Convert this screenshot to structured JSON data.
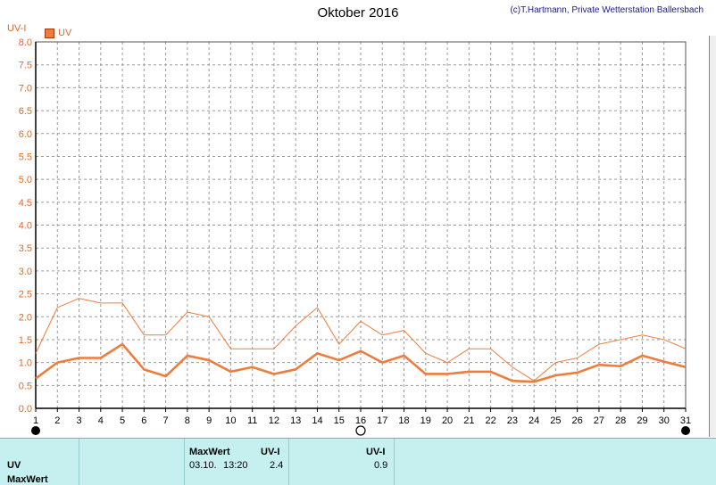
{
  "header": {
    "title": "Oktober 2016",
    "copyright": "(c)T.Hartmann, Private Wetterstation Ballersbach",
    "ylabel": "UV-I",
    "legend_label": "UV"
  },
  "colors": {
    "axis_text": "#e06a2a",
    "series": "#ee7c3c",
    "grid": "#9a9a9a",
    "panel_bg": "#c6f0f0"
  },
  "chart_data": {
    "type": "line",
    "title": "Oktober 2016",
    "ylabel": "UV-I",
    "xlabel": "",
    "ylim": [
      0,
      8
    ],
    "yticks": [
      "0.0",
      "0.5",
      "1.0",
      "1.5",
      "2.0",
      "2.5",
      "3.0",
      "3.5",
      "4.0",
      "4.5",
      "5.0",
      "5.5",
      "6.0",
      "6.5",
      "7.0",
      "7.5",
      "8.0"
    ],
    "x": [
      1,
      2,
      3,
      4,
      5,
      6,
      7,
      8,
      9,
      10,
      11,
      12,
      13,
      14,
      15,
      16,
      17,
      18,
      19,
      20,
      21,
      22,
      23,
      24,
      25,
      26,
      27,
      28,
      29,
      30,
      31
    ],
    "grid": true,
    "legend_position": "top-left",
    "series": [
      {
        "name": "UV",
        "style": "thin",
        "values": [
          1.2,
          2.2,
          2.4,
          2.3,
          2.3,
          1.6,
          1.6,
          2.1,
          2.0,
          1.3,
          1.3,
          1.3,
          1.8,
          2.2,
          1.4,
          1.9,
          1.6,
          1.7,
          1.2,
          1.0,
          1.3,
          1.3,
          0.9,
          0.6,
          1.0,
          1.1,
          1.4,
          1.5,
          1.6,
          1.5,
          1.3
        ]
      },
      {
        "name": "UV",
        "style": "bold",
        "values": [
          0.65,
          1.0,
          1.1,
          1.1,
          1.4,
          0.85,
          0.7,
          1.15,
          1.05,
          0.8,
          0.9,
          0.75,
          0.85,
          1.2,
          1.05,
          1.25,
          1.0,
          1.15,
          0.75,
          0.75,
          0.8,
          0.8,
          0.6,
          0.58,
          0.72,
          0.78,
          0.95,
          0.92,
          1.15,
          1.02,
          0.9
        ]
      }
    ],
    "markers": {
      "filled_days": [
        1,
        31
      ],
      "open_days": [
        16
      ]
    }
  },
  "panel": {
    "row1_label": "UV",
    "row2_label": "MaxWert",
    "maxwert_header": "MaxWert",
    "uvi_header_1": "UV-I",
    "maxwert_date": "03.10.",
    "maxwert_time": "13:20",
    "maxwert_value": "2.4",
    "uvi_header_2": "UV-I",
    "second_value": "0.9"
  }
}
